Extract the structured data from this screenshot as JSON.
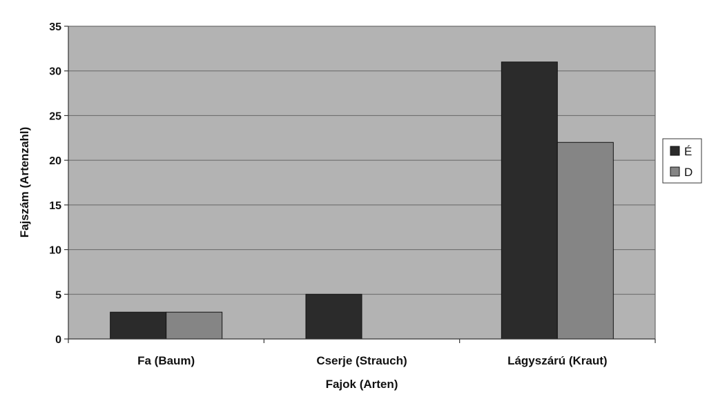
{
  "chart_data": {
    "type": "bar",
    "xlabel": "Fajok (Arten)",
    "ylabel": "Fajszám (Artenzahl)",
    "categories": [
      "Fa (Baum)",
      "Cserje (Strauch)",
      "Lágyszárú (Kraut)"
    ],
    "series": [
      {
        "name": "É",
        "color": "#2b2b2b",
        "values": [
          3,
          5,
          31
        ]
      },
      {
        "name": "D",
        "color": "#858585",
        "values": [
          3,
          0,
          22
        ]
      }
    ],
    "ylim": [
      0,
      35
    ],
    "yticks": [
      0,
      5,
      10,
      15,
      20,
      25,
      30,
      35
    ],
    "grid": true,
    "legend_position": "right",
    "plot_background": "#b3b3b3"
  }
}
